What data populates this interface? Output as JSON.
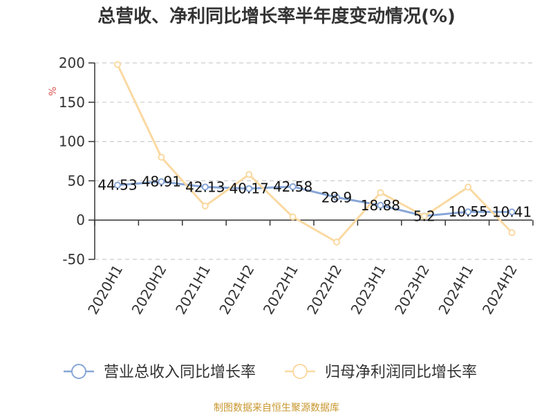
{
  "title": "总营收、净利同比增长率半年度变动情况(%)",
  "footer": "制图数据来自恒生聚源数据库",
  "colors": {
    "revenue": "#87a6d6",
    "profit": "#fad9a1",
    "grid": "#cccccc",
    "axis": "#333333",
    "footer": "#c8962d",
    "unit": "#d9534f"
  },
  "chart_data": {
    "type": "line",
    "title": "总营收、净利同比增长率半年度变动情况(%)",
    "ylabel": "%",
    "xlabel": "",
    "ylim": [
      -50,
      200
    ],
    "yticks": [
      200,
      150,
      100,
      50,
      0,
      -50
    ],
    "grid": true,
    "legend_position": "bottom",
    "categories": [
      "2020H1",
      "2020H2",
      "2021H1",
      "2021H2",
      "2022H1",
      "2022H2",
      "2023H1",
      "2023H2",
      "2024H1",
      "2024H2"
    ],
    "series": [
      {
        "name": "营业总收入同比增长率",
        "color": "#87a6d6",
        "values": [
          44.53,
          48.91,
          42.13,
          40.17,
          42.58,
          28.9,
          18.88,
          5.2,
          10.55,
          10.41
        ],
        "labels": [
          "44.53",
          "48.91",
          "42.13",
          "40.17",
          "42.58",
          "28.9",
          "18.88",
          "5.2",
          "10.55",
          "10.41"
        ]
      },
      {
        "name": "归母净利润同比增长率",
        "color": "#fad9a1",
        "values": [
          198,
          80,
          18,
          58,
          4,
          -28,
          35,
          5,
          42,
          -16
        ]
      }
    ]
  }
}
